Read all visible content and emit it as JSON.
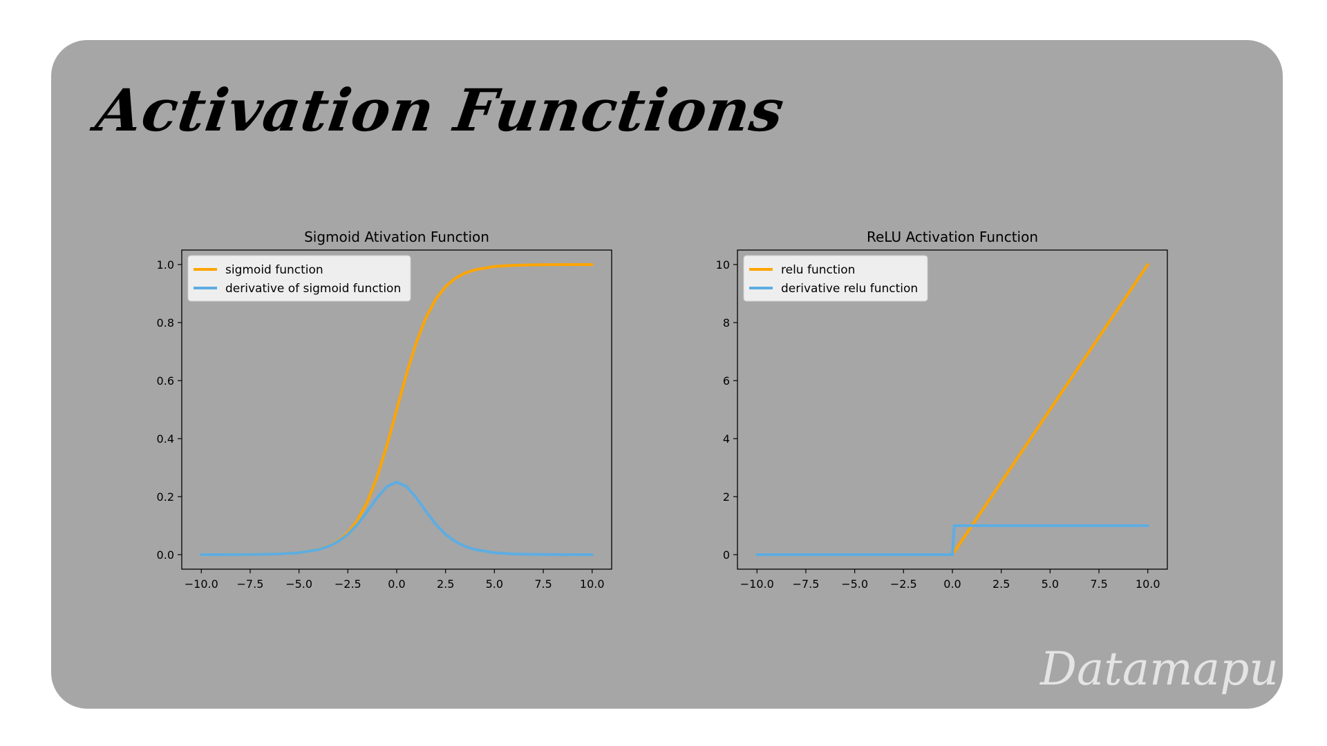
{
  "page": {
    "title": "Activation Functions",
    "brand": "Datamapu"
  },
  "colors": {
    "card_bg": "#a6a6a6",
    "orange": "#ffa500",
    "blue": "#5dade2",
    "legend_bg": "#eeeeee"
  },
  "chart_data": [
    {
      "type": "line",
      "title": "Sigmoid Ativation Function",
      "xlabel": "",
      "ylabel": "",
      "xlim": [
        -11.0,
        11.0
      ],
      "ylim": [
        -0.05,
        1.05
      ],
      "xticks": [
        -10.0,
        -7.5,
        -5.0,
        -2.5,
        0.0,
        2.5,
        5.0,
        7.5,
        10.0
      ],
      "xtick_labels": [
        "−10.0",
        "−7.5",
        "−5.0",
        "−2.5",
        "0.0",
        "2.5",
        "5.0",
        "7.5",
        "10.0"
      ],
      "yticks": [
        0.0,
        0.2,
        0.4,
        0.6,
        0.8,
        1.0
      ],
      "ytick_labels": [
        "0.0",
        "0.2",
        "0.4",
        "0.6",
        "0.8",
        "1.0"
      ],
      "grid": false,
      "legend_position": "upper-left",
      "x": [
        -10,
        -9,
        -8,
        -7,
        -6,
        -5,
        -4,
        -3.5,
        -3,
        -2.5,
        -2,
        -1.5,
        -1,
        -0.5,
        0,
        0.5,
        1,
        1.5,
        2,
        2.5,
        3,
        3.5,
        4,
        5,
        6,
        7,
        8,
        9,
        10
      ],
      "series": [
        {
          "name": "sigmoid function",
          "color": "#ffa500",
          "values": [
            5e-05,
            0.0001,
            0.0003,
            0.0009,
            0.0025,
            0.0067,
            0.018,
            0.0293,
            0.0474,
            0.0759,
            0.1192,
            0.1824,
            0.2689,
            0.3775,
            0.5,
            0.6225,
            0.7311,
            0.8176,
            0.8808,
            0.9241,
            0.9526,
            0.9707,
            0.982,
            0.9933,
            0.9975,
            0.9991,
            0.9997,
            0.9999,
            1.0
          ]
        },
        {
          "name": "derivative of sigmoid function",
          "color": "#5dade2",
          "values": [
            5e-05,
            0.0001,
            0.0003,
            0.0009,
            0.0025,
            0.0066,
            0.0177,
            0.0285,
            0.0452,
            0.0701,
            0.105,
            0.1491,
            0.1966,
            0.235,
            0.25,
            0.235,
            0.1966,
            0.1491,
            0.105,
            0.0701,
            0.0452,
            0.0285,
            0.0177,
            0.0066,
            0.0025,
            0.0009,
            0.0003,
            0.0001,
            5e-05
          ]
        }
      ]
    },
    {
      "type": "line",
      "title": "ReLU Activation Function",
      "xlabel": "",
      "ylabel": "",
      "xlim": [
        -11.0,
        11.0
      ],
      "ylim": [
        -0.5,
        10.5
      ],
      "xticks": [
        -10.0,
        -7.5,
        -5.0,
        -2.5,
        0.0,
        2.5,
        5.0,
        7.5,
        10.0
      ],
      "xtick_labels": [
        "−10.0",
        "−7.5",
        "−5.0",
        "−2.5",
        "0.0",
        "2.5",
        "5.0",
        "7.5",
        "10.0"
      ],
      "yticks": [
        0,
        2,
        4,
        6,
        8,
        10
      ],
      "ytick_labels": [
        "0",
        "2",
        "4",
        "6",
        "8",
        "10"
      ],
      "grid": false,
      "legend_position": "upper-left",
      "series": [
        {
          "name": "relu function",
          "color": "#ffa500",
          "x": [
            0.1,
            10
          ],
          "values": [
            0.1,
            10
          ]
        },
        {
          "name": "derivative relu function",
          "color": "#5dade2",
          "x": [
            -10,
            0,
            0,
            0.1,
            10
          ],
          "values": [
            0,
            0,
            0,
            1,
            1
          ]
        }
      ]
    }
  ]
}
